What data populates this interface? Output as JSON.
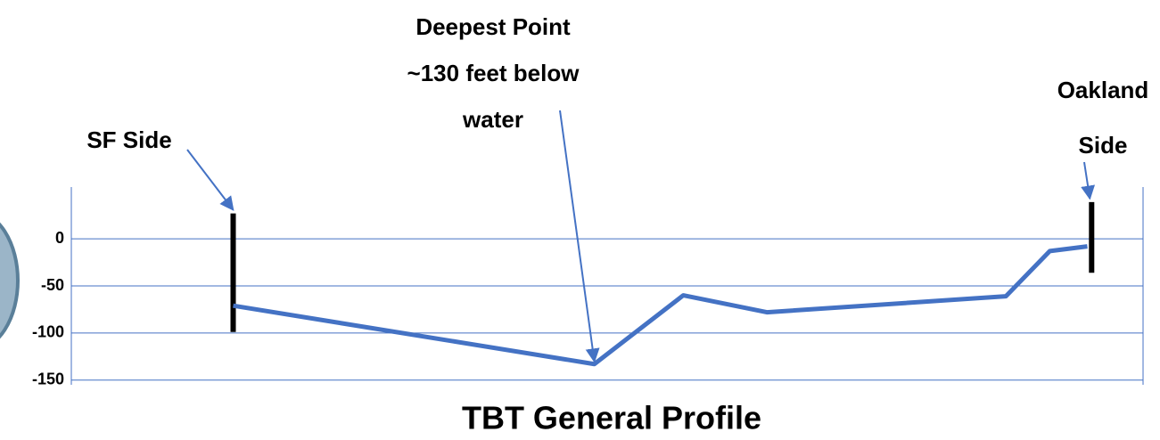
{
  "chart_data": {
    "type": "line",
    "title": "TBT General Profile",
    "x": [
      15.1,
      48.8,
      57.1,
      64.9,
      87.2,
      91.3,
      94.8
    ],
    "values": [
      -71,
      -133,
      -60,
      -78,
      -61,
      -13,
      -8
    ],
    "color": "#4472c4",
    "xlim": [
      0,
      100
    ],
    "ylim": [
      -155,
      55
    ],
    "yticks": [
      0,
      -50,
      -100,
      -150
    ],
    "grid": true,
    "shafts": [
      {
        "x": 15.1,
        "top": 27,
        "bottom": -99
      },
      {
        "x": 95.2,
        "top": 39,
        "bottom": -36
      }
    ],
    "annotations": [
      "SF Side",
      "Deepest Point",
      "~130 feet below water",
      "Oakland Side"
    ]
  }
}
